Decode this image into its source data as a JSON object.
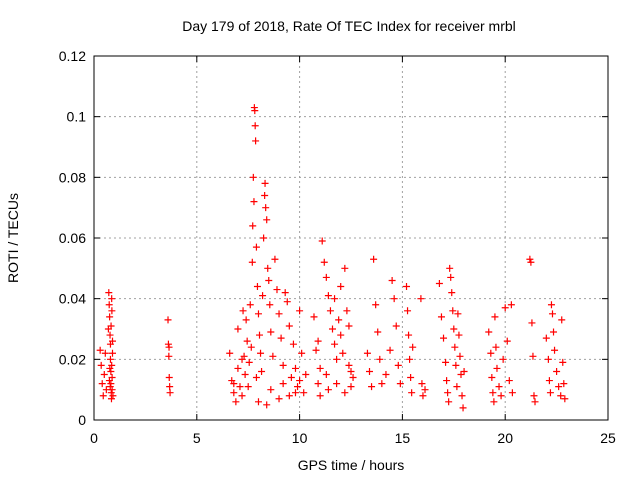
{
  "chart_data": {
    "type": "scatter",
    "title": "Day 179 of 2018, Rate Of TEC Index for receiver mrbl",
    "xlabel": "GPS time / hours",
    "ylabel": "ROTI / TECUs",
    "xlim": [
      0,
      25
    ],
    "ylim": [
      0,
      0.12
    ],
    "xticks": [
      0,
      5,
      10,
      15,
      20,
      25
    ],
    "xtick_labels": [
      "0",
      "5",
      "10",
      "15",
      "20",
      "25"
    ],
    "yticks": [
      0,
      0.02,
      0.04,
      0.06,
      0.08,
      0.1,
      0.12
    ],
    "ytick_labels": [
      "0",
      "0.02",
      "0.04",
      "0.06",
      "0.08",
      "0.1",
      "0.12"
    ],
    "grid": true,
    "marker": "plus",
    "color": "#ff0000",
    "series": [
      {
        "name": "ROTI",
        "points": [
          [
            0.3,
            0.023
          ],
          [
            0.35,
            0.018
          ],
          [
            0.4,
            0.012
          ],
          [
            0.45,
            0.008
          ],
          [
            0.5,
            0.015
          ],
          [
            0.55,
            0.022
          ],
          [
            0.6,
            0.01
          ],
          [
            0.7,
            0.03
          ],
          [
            0.72,
            0.042
          ],
          [
            0.74,
            0.038
          ],
          [
            0.76,
            0.034
          ],
          [
            0.78,
            0.028
          ],
          [
            0.8,
            0.025
          ],
          [
            0.8,
            0.02
          ],
          [
            0.82,
            0.016
          ],
          [
            0.82,
            0.012
          ],
          [
            0.84,
            0.009
          ],
          [
            0.85,
            0.007
          ],
          [
            0.86,
            0.04
          ],
          [
            0.86,
            0.018
          ],
          [
            0.88,
            0.014
          ],
          [
            0.88,
            0.01
          ],
          [
            0.9,
            0.022
          ],
          [
            0.9,
            0.026
          ],
          [
            0.92,
            0.008
          ],
          [
            0.75,
            0.013
          ],
          [
            0.77,
            0.017
          ],
          [
            0.79,
            0.011
          ],
          [
            0.83,
            0.031
          ],
          [
            0.87,
            0.036
          ],
          [
            3.6,
            0.033
          ],
          [
            3.62,
            0.025
          ],
          [
            3.64,
            0.021
          ],
          [
            3.66,
            0.014
          ],
          [
            3.68,
            0.011
          ],
          [
            3.7,
            0.009
          ],
          [
            3.65,
            0.024
          ],
          [
            6.6,
            0.022
          ],
          [
            6.7,
            0.013
          ],
          [
            6.8,
            0.009
          ],
          [
            6.9,
            0.006
          ],
          [
            7.0,
            0.017
          ],
          [
            7.0,
            0.03
          ],
          [
            7.1,
            0.011
          ],
          [
            7.2,
            0.008
          ],
          [
            7.25,
            0.036
          ],
          [
            7.3,
            0.021
          ],
          [
            7.35,
            0.015
          ],
          [
            7.4,
            0.033
          ],
          [
            7.45,
            0.026
          ],
          [
            7.5,
            0.011
          ],
          [
            7.55,
            0.019
          ],
          [
            7.6,
            0.038
          ],
          [
            7.65,
            0.024
          ],
          [
            7.7,
            0.052
          ],
          [
            7.72,
            0.064
          ],
          [
            7.75,
            0.08
          ],
          [
            7.78,
            0.072
          ],
          [
            7.8,
            0.103
          ],
          [
            7.82,
            0.102
          ],
          [
            7.84,
            0.097
          ],
          [
            7.86,
            0.092
          ],
          [
            7.9,
            0.057
          ],
          [
            7.95,
            0.044
          ],
          [
            8.0,
            0.035
          ],
          [
            8.05,
            0.028
          ],
          [
            8.1,
            0.022
          ],
          [
            8.15,
            0.016
          ],
          [
            8.2,
            0.041
          ],
          [
            8.25,
            0.06
          ],
          [
            8.3,
            0.074
          ],
          [
            8.32,
            0.078
          ],
          [
            8.35,
            0.07
          ],
          [
            8.4,
            0.066
          ],
          [
            8.45,
            0.05
          ],
          [
            8.5,
            0.046
          ],
          [
            8.55,
            0.038
          ],
          [
            8.6,
            0.029
          ],
          [
            8.7,
            0.021
          ],
          [
            8.8,
            0.053
          ],
          [
            8.9,
            0.043
          ],
          [
            9.0,
            0.035
          ],
          [
            9.1,
            0.027
          ],
          [
            9.2,
            0.018
          ],
          [
            9.3,
            0.042
          ],
          [
            9.4,
            0.039
          ],
          [
            9.5,
            0.031
          ],
          [
            9.6,
            0.014
          ],
          [
            9.7,
            0.025
          ],
          [
            9.8,
            0.017
          ],
          [
            9.9,
            0.011
          ],
          [
            10.0,
            0.036
          ],
          [
            10.1,
            0.022
          ],
          [
            10.2,
            0.009
          ],
          [
            10.3,
            0.015
          ],
          [
            8.0,
            0.006
          ],
          [
            8.4,
            0.005
          ],
          [
            9.0,
            0.007
          ],
          [
            9.5,
            0.008
          ],
          [
            6.8,
            0.012
          ],
          [
            7.2,
            0.02
          ],
          [
            7.9,
            0.014
          ],
          [
            8.6,
            0.01
          ],
          [
            9.2,
            0.012
          ],
          [
            9.8,
            0.009
          ],
          [
            10.0,
            0.013
          ],
          [
            10.7,
            0.034
          ],
          [
            10.8,
            0.023
          ],
          [
            10.9,
            0.012
          ],
          [
            11.0,
            0.017
          ],
          [
            11.1,
            0.059
          ],
          [
            11.2,
            0.052
          ],
          [
            11.3,
            0.047
          ],
          [
            11.4,
            0.041
          ],
          [
            11.5,
            0.036
          ],
          [
            11.6,
            0.03
          ],
          [
            11.7,
            0.025
          ],
          [
            11.8,
            0.02
          ],
          [
            11.9,
            0.033
          ],
          [
            12.0,
            0.028
          ],
          [
            12.1,
            0.022
          ],
          [
            12.2,
            0.05
          ],
          [
            12.3,
            0.036
          ],
          [
            12.4,
            0.018
          ],
          [
            12.5,
            0.011
          ],
          [
            12.6,
            0.014
          ],
          [
            11.0,
            0.008
          ],
          [
            11.4,
            0.01
          ],
          [
            11.8,
            0.012
          ],
          [
            12.2,
            0.009
          ],
          [
            12.5,
            0.016
          ],
          [
            10.9,
            0.026
          ],
          [
            11.3,
            0.015
          ],
          [
            11.7,
            0.04
          ],
          [
            12.0,
            0.044
          ],
          [
            12.4,
            0.031
          ],
          [
            13.3,
            0.022
          ],
          [
            13.4,
            0.016
          ],
          [
            13.5,
            0.011
          ],
          [
            13.6,
            0.053
          ],
          [
            13.7,
            0.038
          ],
          [
            13.8,
            0.029
          ],
          [
            13.9,
            0.02
          ],
          [
            14.0,
            0.012
          ],
          [
            14.2,
            0.015
          ],
          [
            14.4,
            0.023
          ],
          [
            14.5,
            0.046
          ],
          [
            14.6,
            0.04
          ],
          [
            14.7,
            0.031
          ],
          [
            14.8,
            0.018
          ],
          [
            14.9,
            0.012
          ],
          [
            15.2,
            0.044
          ],
          [
            15.25,
            0.036
          ],
          [
            15.3,
            0.028
          ],
          [
            15.35,
            0.02
          ],
          [
            15.4,
            0.014
          ],
          [
            15.45,
            0.009
          ],
          [
            15.5,
            0.024
          ],
          [
            15.9,
            0.04
          ],
          [
            15.95,
            0.012
          ],
          [
            16.0,
            0.008
          ],
          [
            16.1,
            0.01
          ],
          [
            16.8,
            0.045
          ],
          [
            16.9,
            0.034
          ],
          [
            17.0,
            0.027
          ],
          [
            17.1,
            0.019
          ],
          [
            17.15,
            0.013
          ],
          [
            17.2,
            0.009
          ],
          [
            17.25,
            0.006
          ],
          [
            17.3,
            0.05
          ],
          [
            17.35,
            0.047
          ],
          [
            17.4,
            0.042
          ],
          [
            17.45,
            0.036
          ],
          [
            17.5,
            0.03
          ],
          [
            17.55,
            0.024
          ],
          [
            17.6,
            0.018
          ],
          [
            17.65,
            0.011
          ],
          [
            17.7,
            0.035
          ],
          [
            17.75,
            0.028
          ],
          [
            17.8,
            0.021
          ],
          [
            17.85,
            0.015
          ],
          [
            17.9,
            0.008
          ],
          [
            17.95,
            0.004
          ],
          [
            18.0,
            0.016
          ],
          [
            19.2,
            0.029
          ],
          [
            19.3,
            0.022
          ],
          [
            19.35,
            0.014
          ],
          [
            19.4,
            0.009
          ],
          [
            19.45,
            0.006
          ],
          [
            19.5,
            0.034
          ],
          [
            19.55,
            0.024
          ],
          [
            19.6,
            0.017
          ],
          [
            19.7,
            0.011
          ],
          [
            19.8,
            0.008
          ],
          [
            19.9,
            0.02
          ],
          [
            20.0,
            0.037
          ],
          [
            20.1,
            0.026
          ],
          [
            20.2,
            0.013
          ],
          [
            20.3,
            0.038
          ],
          [
            20.35,
            0.009
          ],
          [
            21.2,
            0.053
          ],
          [
            21.25,
            0.052
          ],
          [
            21.3,
            0.032
          ],
          [
            21.35,
            0.021
          ],
          [
            21.4,
            0.008
          ],
          [
            21.45,
            0.006
          ],
          [
            22.0,
            0.027
          ],
          [
            22.1,
            0.02
          ],
          [
            22.15,
            0.013
          ],
          [
            22.2,
            0.009
          ],
          [
            22.25,
            0.038
          ],
          [
            22.3,
            0.035
          ],
          [
            22.35,
            0.029
          ],
          [
            22.4,
            0.023
          ],
          [
            22.5,
            0.016
          ],
          [
            22.6,
            0.011
          ],
          [
            22.7,
            0.008
          ],
          [
            22.75,
            0.033
          ],
          [
            22.8,
            0.019
          ],
          [
            22.85,
            0.012
          ],
          [
            22.9,
            0.007
          ]
        ]
      }
    ]
  }
}
